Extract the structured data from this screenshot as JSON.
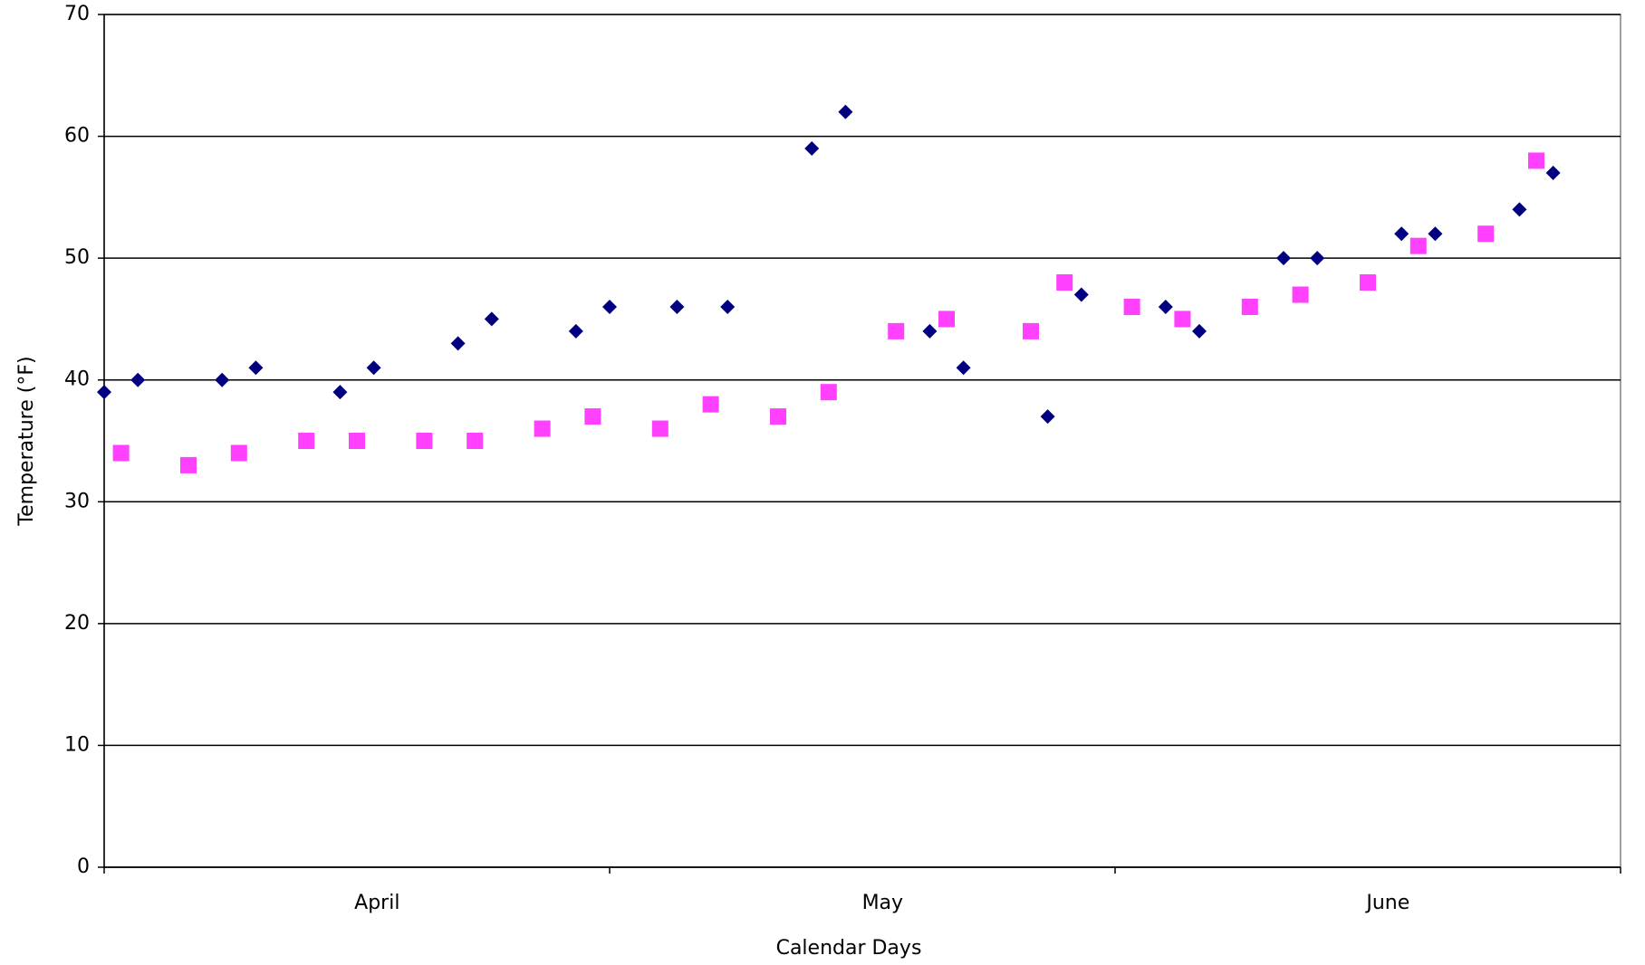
{
  "chart_data": {
    "type": "scatter",
    "x_label": "Calendar Days",
    "y_label": "Temperature (°F)",
    "categories": [
      "April",
      "May",
      "June"
    ],
    "xlim": [
      0,
      90
    ],
    "ylim": [
      0,
      70
    ],
    "yticks": [
      0,
      10,
      20,
      30,
      40,
      50,
      60,
      70
    ],
    "grid": true,
    "series": [
      {
        "color": "#000080",
        "marker": "diamond",
        "x": [
          0,
          2,
          7,
          9,
          14,
          16,
          21,
          23,
          28,
          30,
          34,
          37,
          42,
          44,
          49,
          51,
          56,
          58,
          63,
          65,
          70,
          72,
          77,
          79,
          84,
          86
        ],
        "values": [
          39,
          40,
          40,
          41,
          39,
          41,
          43,
          45,
          44,
          46,
          46,
          46,
          59,
          62,
          44,
          41,
          37,
          47,
          46,
          44,
          50,
          50,
          52,
          52,
          54,
          57
        ]
      },
      {
        "color": "#ff40ff",
        "marker": "square",
        "x": [
          1,
          5,
          8,
          12,
          15,
          19,
          22,
          26,
          29,
          33,
          36,
          40,
          43,
          47,
          50,
          55,
          57,
          61,
          64,
          68,
          71,
          75,
          78,
          82,
          85
        ],
        "values": [
          34,
          33,
          34,
          35,
          35,
          35,
          35,
          36,
          37,
          36,
          38,
          37,
          39,
          44,
          45,
          44,
          48,
          46,
          45,
          46,
          47,
          48,
          51,
          52,
          58
        ]
      }
    ]
  }
}
